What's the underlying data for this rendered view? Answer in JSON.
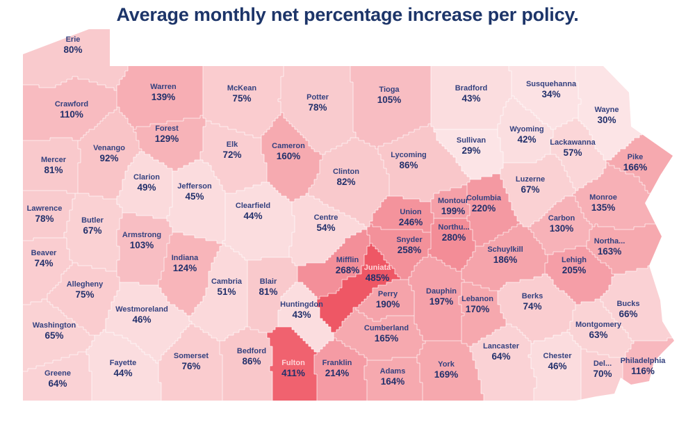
{
  "title": "Average monthly net percentage increase per policy.",
  "map": {
    "region": "Pennsylvania counties choropleth",
    "value_unit": "%",
    "palette": {
      "title_color": "#1d3569",
      "county_name_color": "#34417f",
      "county_value_color": "#22306b",
      "light_label_color": "#ffd3d7",
      "border_color": "rgba(255,255,255,0.65)",
      "background": "#ffffff",
      "scale": [
        [
          29,
          "#fce4e6"
        ],
        [
          45,
          "#fbdcde"
        ],
        [
          55,
          "#fbd7d9"
        ],
        [
          70,
          "#facfd2"
        ],
        [
          85,
          "#f9c7ca"
        ],
        [
          110,
          "#f8bbc0"
        ],
        [
          140,
          "#f7aeb4"
        ],
        [
          170,
          "#f6a8ae"
        ],
        [
          200,
          "#f5a0a8"
        ],
        [
          230,
          "#f4969f"
        ],
        [
          285,
          "#f38c96"
        ],
        [
          420,
          "#f05f6c"
        ],
        [
          485,
          "#ee5765"
        ]
      ]
    },
    "counties": [
      {
        "name": "Erie",
        "value": 80,
        "text": "80%",
        "label": [
          105,
          57
        ],
        "seeds": [
          [
            70,
            85
          ],
          [
            130,
            70
          ]
        ]
      },
      {
        "name": "Crawford",
        "value": 110,
        "text": "110%",
        "label": [
          103,
          150
        ],
        "seeds": [
          [
            60,
            165
          ]
        ]
      },
      {
        "name": "Warren",
        "value": 139,
        "text": "139%",
        "label": [
          235,
          125
        ],
        "seeds": [
          [
            235,
            162
          ]
        ]
      },
      {
        "name": "McKean",
        "value": 75,
        "text": "75%",
        "label": [
          348,
          127
        ],
        "seeds": [
          [
            350,
            163
          ]
        ]
      },
      {
        "name": "Potter",
        "value": 78,
        "text": "78%",
        "label": [
          457,
          140
        ],
        "seeds": [
          [
            457,
            178
          ]
        ]
      },
      {
        "name": "Tioga",
        "value": 105,
        "text": "105%",
        "label": [
          560,
          129
        ],
        "seeds": [
          [
            560,
            168
          ]
        ]
      },
      {
        "name": "Bradford",
        "value": 43,
        "text": "43%",
        "label": [
          678,
          127
        ],
        "seeds": [
          [
            678,
            162
          ]
        ]
      },
      {
        "name": "Susquehanna",
        "value": 34,
        "text": "34%",
        "label": [
          793,
          121
        ],
        "seeds": [
          [
            793,
            150
          ]
        ]
      },
      {
        "name": "Wayne",
        "value": 30,
        "text": "30%",
        "label": [
          873,
          158
        ],
        "seeds": [
          [
            868,
            120
          ],
          [
            882,
            192
          ]
        ]
      },
      {
        "name": "Pike",
        "value": 166,
        "text": "166%",
        "label": [
          914,
          226
        ],
        "seeds": [
          [
            938,
            241
          ]
        ]
      },
      {
        "name": "Mercer",
        "value": 81,
        "text": "81%",
        "label": [
          77,
          230
        ],
        "seeds": [
          [
            60,
            242
          ]
        ]
      },
      {
        "name": "Venango",
        "value": 92,
        "text": "92%",
        "label": [
          157,
          213
        ],
        "seeds": [
          [
            150,
            242
          ]
        ]
      },
      {
        "name": "Forest",
        "value": 129,
        "text": "129%",
        "label": [
          240,
          185
        ],
        "seeds": [
          [
            248,
            205
          ]
        ]
      },
      {
        "name": "Elk",
        "value": 72,
        "text": "72%",
        "label": [
          334,
          208
        ],
        "seeds": [
          [
            345,
            240
          ]
        ]
      },
      {
        "name": "Cameron",
        "value": 160,
        "text": "160%",
        "label": [
          415,
          210
        ],
        "seeds": [
          [
            420,
            235
          ]
        ]
      },
      {
        "name": "Clarion",
        "value": 49,
        "text": "49%",
        "label": [
          211,
          255
        ],
        "seeds": [
          [
            215,
            276
          ]
        ]
      },
      {
        "name": "Jefferson",
        "value": 45,
        "text": "45%",
        "label": [
          280,
          268
        ],
        "seeds": [
          [
            285,
            300
          ]
        ]
      },
      {
        "name": "Clinton",
        "value": 82,
        "text": "82%",
        "label": [
          498,
          247
        ],
        "seeds": [
          [
            490,
            280
          ],
          [
            522,
            256
          ]
        ]
      },
      {
        "name": "Lycoming",
        "value": 86,
        "text": "86%",
        "label": [
          588,
          223
        ],
        "seeds": [
          [
            600,
            262
          ],
          [
            640,
            250
          ]
        ]
      },
      {
        "name": "Sullivan",
        "value": 29,
        "text": "29%",
        "label": [
          678,
          202
        ],
        "seeds": [
          [
            680,
            222
          ]
        ]
      },
      {
        "name": "Wyoming",
        "value": 42,
        "text": "42%",
        "label": [
          758,
          186
        ],
        "seeds": [
          [
            762,
            206
          ]
        ]
      },
      {
        "name": "Lackawanna",
        "value": 57,
        "text": "57%",
        "label": [
          824,
          205
        ],
        "seeds": [
          [
            832,
            232
          ]
        ]
      },
      {
        "name": "Lawrence",
        "value": 78,
        "text": "78%",
        "label": [
          64,
          300
        ],
        "seeds": [
          [
            58,
            316
          ]
        ]
      },
      {
        "name": "Butler",
        "value": 67,
        "text": "67%",
        "label": [
          133,
          317
        ],
        "seeds": [
          [
            135,
            352
          ]
        ]
      },
      {
        "name": "Clearfield",
        "value": 44,
        "text": "44%",
        "label": [
          364,
          296
        ],
        "seeds": [
          [
            380,
            332
          ]
        ]
      },
      {
        "name": "Centre",
        "value": 54,
        "text": "54%",
        "label": [
          469,
          313
        ],
        "seeds": [
          [
            462,
            347
          ]
        ]
      },
      {
        "name": "Union",
        "value": 246,
        "text": "246%",
        "label": [
          591,
          305
        ]
      },
      {
        "name": "Montour",
        "value": 199,
        "text": "199%",
        "label": [
          652,
          289
        ]
      },
      {
        "name": "Columbia",
        "value": 220,
        "text": "220%",
        "label": [
          696,
          285
        ],
        "seeds": [
          [
            700,
            320
          ]
        ]
      },
      {
        "name": "Luzerne",
        "value": 67,
        "text": "67%",
        "label": [
          763,
          258
        ],
        "seeds": [
          [
            775,
            282
          ],
          [
            792,
            252
          ]
        ]
      },
      {
        "name": "Monroe",
        "value": 135,
        "text": "135%",
        "label": [
          868,
          284
        ],
        "seeds": [
          [
            886,
            302
          ],
          [
            898,
            268
          ]
        ]
      },
      {
        "name": "Carbon",
        "value": 130,
        "text": "130%",
        "label": [
          808,
          314
        ],
        "seeds": [
          [
            816,
            336
          ]
        ]
      },
      {
        "name": "Northu...",
        "value": 280,
        "text": "280%",
        "label": [
          653,
          327
        ],
        "seeds": [
          [
            648,
            356
          ]
        ]
      },
      {
        "name": "Schuylkill",
        "value": 186,
        "text": "186%",
        "label": [
          727,
          359
        ],
        "seeds": [
          [
            746,
            376
          ],
          [
            702,
            390
          ]
        ]
      },
      {
        "name": "Northa...",
        "value": 163,
        "text": "163%",
        "label": [
          877,
          347
        ],
        "seeds": [
          [
            900,
            362
          ]
        ]
      },
      {
        "name": "Lehigh",
        "value": 205,
        "text": "205%",
        "label": [
          826,
          374
        ],
        "seeds": [
          [
            846,
            392
          ]
        ]
      },
      {
        "name": "Snyder",
        "value": 258,
        "text": "258%",
        "label": [
          589,
          345
        ],
        "seeds": [
          [
            574,
            366
          ]
        ]
      },
      {
        "name": "Mifflin",
        "value": 268,
        "text": "268%",
        "label": [
          500,
          374
        ],
        "seeds": [
          [
            470,
            406
          ]
        ]
      },
      {
        "name": "Juniata",
        "value": 485,
        "text": "485%",
        "label": [
          543,
          385
        ],
        "light": true,
        "seeds": [
          [
            512,
            416
          ],
          [
            482,
            440
          ]
        ]
      },
      {
        "name": "Beaver",
        "value": 74,
        "text": "74%",
        "label": [
          63,
          364
        ],
        "seeds": [
          [
            54,
            386
          ]
        ]
      },
      {
        "name": "Armstrong",
        "value": 103,
        "text": "103%",
        "label": [
          204,
          338
        ],
        "seeds": [
          [
            210,
            366
          ]
        ]
      },
      {
        "name": "Indiana",
        "value": 124,
        "text": "124%",
        "label": [
          266,
          371
        ],
        "seeds": [
          [
            272,
            402
          ]
        ]
      },
      {
        "name": "Allegheny",
        "value": 75,
        "text": "75%",
        "label": [
          122,
          409
        ],
        "seeds": [
          [
            110,
            432
          ]
        ]
      },
      {
        "name": "Cambria",
        "value": 51,
        "text": "51%",
        "label": [
          326,
          405
        ],
        "seeds": [
          [
            324,
            442
          ]
        ]
      },
      {
        "name": "Blair",
        "value": 81,
        "text": "81%",
        "label": [
          386,
          405
        ],
        "seeds": [
          [
            384,
            442
          ]
        ]
      },
      {
        "name": "Huntingdon",
        "value": 43,
        "text": "43%",
        "label": [
          434,
          438
        ],
        "seeds": [
          [
            442,
            472
          ],
          [
            420,
            446
          ]
        ]
      },
      {
        "name": "Perry",
        "value": 190,
        "text": "190%",
        "label": [
          558,
          423
        ],
        "seeds": [
          [
            538,
            442
          ]
        ]
      },
      {
        "name": "Dauphin",
        "value": 197,
        "text": "197%",
        "label": [
          635,
          419
        ],
        "seeds": [
          [
            640,
            452
          ],
          [
            624,
            398
          ]
        ]
      },
      {
        "name": "Lebanon",
        "value": 170,
        "text": "170%",
        "label": [
          687,
          430
        ],
        "seeds": [
          [
            692,
            456
          ]
        ]
      },
      {
        "name": "Berks",
        "value": 74,
        "text": "74%",
        "label": [
          766,
          426
        ],
        "seeds": [
          [
            782,
            452
          ],
          [
            748,
            432
          ]
        ]
      },
      {
        "name": "Westmoreland",
        "value": 46,
        "text": "46%",
        "label": [
          204,
          445
        ],
        "seeds": [
          [
            222,
            472
          ]
        ]
      },
      {
        "name": "Washington",
        "value": 65,
        "text": "65%",
        "label": [
          78,
          468
        ],
        "seeds": [
          [
            68,
            497
          ]
        ]
      },
      {
        "name": "Cumberland",
        "value": 165,
        "text": "165%",
        "label": [
          556,
          472
        ],
        "seeds": [
          [
            562,
            492
          ],
          [
            520,
            470
          ]
        ]
      },
      {
        "name": "Montgomery",
        "value": 63,
        "text": "63%",
        "label": [
          861,
          467
        ],
        "seeds": [
          [
            876,
            492
          ]
        ]
      },
      {
        "name": "Bucks",
        "value": 66,
        "text": "66%",
        "label": [
          904,
          437
        ],
        "seeds": [
          [
            922,
            458
          ],
          [
            914,
            418
          ]
        ]
      },
      {
        "name": "Somerset",
        "value": 76,
        "text": "76%",
        "label": [
          275,
          512
        ],
        "seeds": [
          [
            278,
            548
          ]
        ]
      },
      {
        "name": "Bedford",
        "value": 86,
        "text": "86%",
        "label": [
          362,
          505
        ],
        "seeds": [
          [
            360,
            546
          ]
        ]
      },
      {
        "name": "Fulton",
        "value": 411,
        "text": "411%",
        "label": [
          422,
          522
        ],
        "light": true,
        "seeds": [
          [
            420,
            494
          ],
          [
            426,
            552
          ]
        ]
      },
      {
        "name": "Franklin",
        "value": 214,
        "text": "214%",
        "label": [
          485,
          522
        ],
        "seeds": [
          [
            488,
            556
          ]
        ]
      },
      {
        "name": "Greene",
        "value": 64,
        "text": "64%",
        "label": [
          83,
          537
        ],
        "seeds": [
          [
            80,
            560
          ]
        ]
      },
      {
        "name": "Fayette",
        "value": 44,
        "text": "44%",
        "label": [
          177,
          522
        ],
        "seeds": [
          [
            182,
            550
          ]
        ]
      },
      {
        "name": "Adams",
        "value": 164,
        "text": "164%",
        "label": [
          565,
          534
        ],
        "seeds": [
          [
            566,
            557
          ]
        ]
      },
      {
        "name": "York",
        "value": 169,
        "text": "169%",
        "label": [
          642,
          524
        ],
        "seeds": [
          [
            650,
            556
          ]
        ]
      },
      {
        "name": "Lancaster",
        "value": 64,
        "text": "64%",
        "label": [
          721,
          498
        ],
        "seeds": [
          [
            730,
            540
          ]
        ]
      },
      {
        "name": "Chester",
        "value": 46,
        "text": "46%",
        "label": [
          802,
          512
        ],
        "seeds": [
          [
            812,
            546
          ]
        ]
      },
      {
        "name": "Del...",
        "value": 70,
        "text": "70%",
        "label": [
          867,
          523
        ],
        "seeds": [
          [
            858,
            546
          ]
        ]
      },
      {
        "name": "Philadelphia",
        "value": 116,
        "text": "116%",
        "label": [
          925,
          519
        ],
        "seeds": [
          [
            940,
            532
          ]
        ]
      }
    ]
  }
}
